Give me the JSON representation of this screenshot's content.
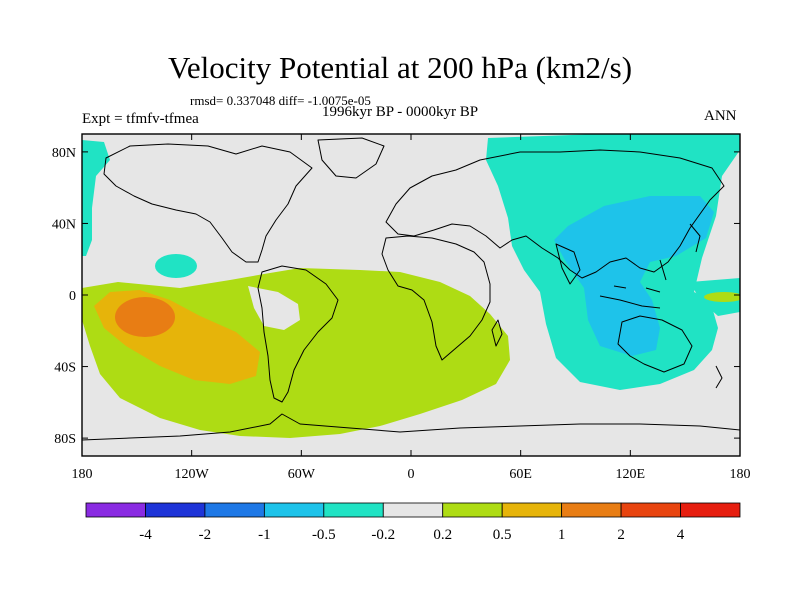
{
  "title": "Velocity Potential at 200 hPa (km2/s)",
  "stats": "rmsd= 0.337048 diff= -1.0075e-05",
  "experiment": "Expt = tfmfv-tfmea",
  "period": "1996kyr BP - 0000kyr BP",
  "season": "ANN",
  "lat_labels": [
    "80N",
    "40N",
    "0",
    "40S",
    "80S"
  ],
  "lon_labels": [
    "180",
    "120W",
    "60W",
    "0",
    "60E",
    "120E",
    "180"
  ],
  "colorbar": {
    "colors": [
      "#8a2be2",
      "#1e34d8",
      "#1e78e6",
      "#1ec3ea",
      "#20e3c4",
      "#e6e6e6",
      "#aedc14",
      "#e6b40a",
      "#e87d14",
      "#e8440f",
      "#e61e0f"
    ],
    "labels": [
      "-4",
      "-2",
      "-1",
      "-0.5",
      "-0.2",
      "0.2",
      "0.5",
      "1",
      "2",
      "4"
    ]
  },
  "chart_data": {
    "type": "contour-map",
    "variable": "Velocity Potential at 200 hPa (km2/s)",
    "levels": [
      -4,
      -2,
      -1,
      -0.5,
      -0.2,
      0.2,
      0.5,
      1,
      2,
      4
    ],
    "xlim": [
      -180,
      180
    ],
    "ylim": [
      -90,
      90
    ],
    "regions": [
      {
        "name": "Asia / western Pacific / Indian Ocean",
        "range": [
          -1,
          -0.5
        ]
      },
      {
        "name": "Asian core",
        "range": [
          -2,
          -1
        ]
      },
      {
        "name": "Tropical South Pacific & Atlantic",
        "range": [
          0.2,
          0.5
        ]
      },
      {
        "name": "Southeast Pacific",
        "range": [
          0.5,
          1
        ]
      },
      {
        "name": "Southeast Pacific core",
        "range": [
          1,
          2
        ]
      }
    ]
  }
}
